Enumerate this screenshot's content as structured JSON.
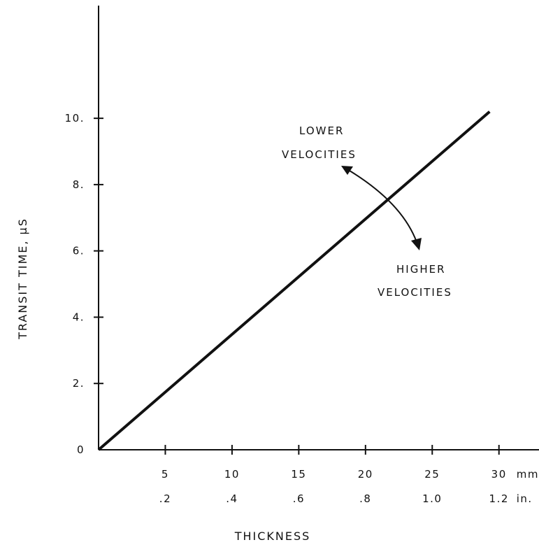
{
  "chart_data": {
    "type": "line",
    "xlabel": "THICKNESS",
    "ylabel": "TRANSIT TIME, μS",
    "xlim": [
      0,
      33
    ],
    "ylim": [
      0,
      13.4
    ],
    "x_unit_primary": "mm",
    "x_unit_secondary": "in.",
    "x_ticks": [
      {
        "mm": 5,
        "mm_label": "5",
        "in_label": ".2"
      },
      {
        "mm": 10,
        "mm_label": "10",
        "in_label": ".4"
      },
      {
        "mm": 15,
        "mm_label": "15",
        "in_label": ".6"
      },
      {
        "mm": 20,
        "mm_label": "20",
        "in_label": ".8"
      },
      {
        "mm": 25,
        "mm_label": "25",
        "in_label": "1.0"
      },
      {
        "mm": 30,
        "mm_label": "30",
        "in_label": "1.2"
      }
    ],
    "y_ticks": [
      {
        "value": 0,
        "label": "0"
      },
      {
        "value": 2,
        "label": "2."
      },
      {
        "value": 4,
        "label": "4."
      },
      {
        "value": 6,
        "label": "6."
      },
      {
        "value": 8,
        "label": "8."
      },
      {
        "value": 10,
        "label": "10."
      }
    ],
    "series": [
      {
        "x": [
          0,
          29.3
        ],
        "y": [
          0,
          10.2
        ]
      }
    ],
    "annotations": {
      "lower": [
        "LOWER",
        "VELOCITIES"
      ],
      "higher": [
        "HIGHER",
        "VELOCITIES"
      ]
    },
    "grid": false,
    "colors": {
      "ink": "#111111",
      "background": "#ffffff"
    }
  }
}
